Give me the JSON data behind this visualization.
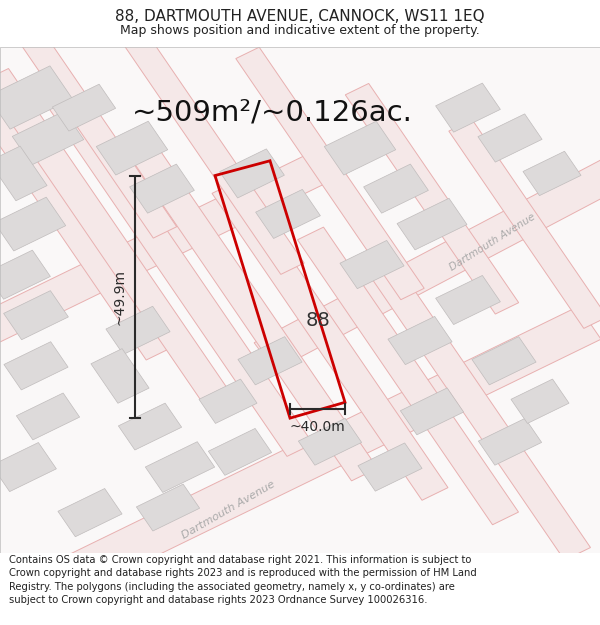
{
  "title": "88, DARTMOUTH AVENUE, CANNOCK, WS11 1EQ",
  "subtitle": "Map shows position and indicative extent of the property.",
  "area_text": "~509m²/~0.126ac.",
  "width_label": "~40.0m",
  "height_label": "~49.9m",
  "number_label": "88",
  "footer_text": "Contains OS data © Crown copyright and database right 2021. This information is subject to Crown copyright and database rights 2023 and is reproduced with the permission of HM Land Registry. The polygons (including the associated geometry, namely x, y co-ordinates) are subject to Crown copyright and database rights 2023 Ordnance Survey 100026316.",
  "map_bg": "#faf8f8",
  "road_line_color": "#e8b0b0",
  "road_fill_color": "#f5e8e8",
  "building_fill": "#dddada",
  "building_stroke": "#c0bcbc",
  "property_color": "#cc0000",
  "dim_color": "#2a2a2a",
  "title_fontsize": 11,
  "subtitle_fontsize": 9,
  "area_fontsize": 21,
  "label_fontsize": 10,
  "footer_fontsize": 7.2,
  "road_label_color": "#aaaaaa",
  "road_label_fontsize": 8
}
